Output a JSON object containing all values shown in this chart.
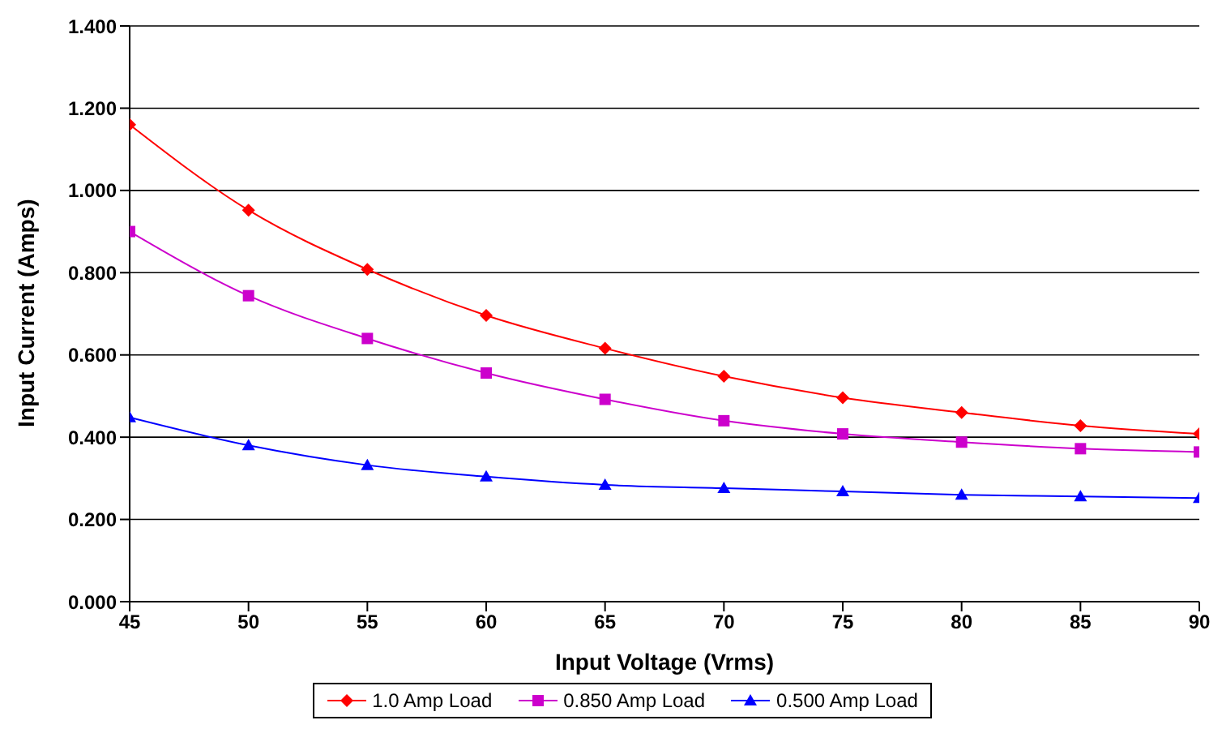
{
  "chart_data": {
    "type": "line",
    "xlabel": "Input Voltage (Vrms)",
    "ylabel": "Input Current (Amps)",
    "x": [
      45,
      50,
      55,
      60,
      65,
      70,
      75,
      80,
      85,
      90
    ],
    "series": [
      {
        "name": "1.0 Amp Load",
        "color": "#ff0000",
        "marker": "diamond",
        "values": [
          1.16,
          0.952,
          0.808,
          0.696,
          0.616,
          0.548,
          0.496,
          0.46,
          0.428,
          0.408
        ]
      },
      {
        "name": "0.850 Amp Load",
        "color": "#cc00cc",
        "marker": "square",
        "values": [
          0.9,
          0.744,
          0.64,
          0.556,
          0.492,
          0.44,
          0.408,
          0.388,
          0.372,
          0.364
        ]
      },
      {
        "name": "0.500 Amp Load",
        "color": "#0000ff",
        "marker": "triangle",
        "values": [
          0.448,
          0.38,
          0.332,
          0.304,
          0.284,
          0.276,
          0.268,
          0.26,
          0.256,
          0.252
        ]
      }
    ],
    "xlim": [
      45,
      90
    ],
    "xticks": [
      45,
      50,
      55,
      60,
      65,
      70,
      75,
      80,
      85,
      90
    ],
    "ylim": [
      0,
      1.4
    ],
    "yticks": [
      {
        "value": 0,
        "label": "0.000"
      },
      {
        "value": 0.2,
        "label": "0.200"
      },
      {
        "value": 0.4,
        "label": "0.400"
      },
      {
        "value": 0.6,
        "label": "0.600"
      },
      {
        "value": 0.8,
        "label": "0.800"
      },
      {
        "value": 1,
        "label": "1.000"
      },
      {
        "value": 1.2,
        "label": "1.200"
      },
      {
        "value": 1.4,
        "label": "1.400"
      }
    ],
    "grid": "y",
    "legend": "bottom",
    "line_style": "solid"
  }
}
